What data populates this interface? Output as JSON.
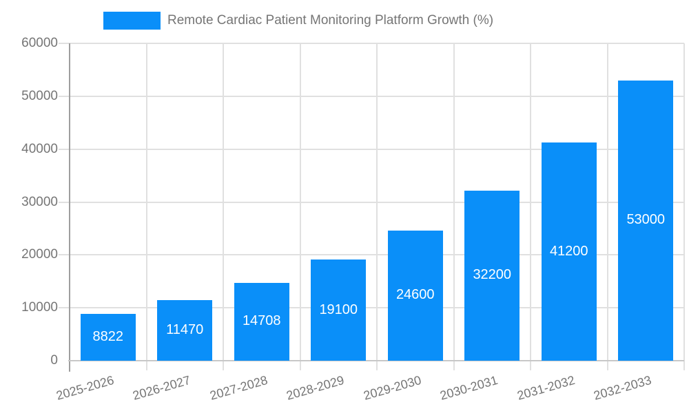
{
  "legend": {
    "label": "Remote Cardiac Patient Monitoring Platform Growth (%)"
  },
  "colors": {
    "bar": "#0a8ff9",
    "label_text": "#757575",
    "value_text": "#ffffff",
    "gridline": "#e0e0e0",
    "y_axis": "#9e9e9e",
    "x_axis": "#c7c7c7",
    "background": "#ffffff"
  },
  "chart_data": {
    "type": "bar",
    "title": "Remote Cardiac Patient Monitoring Platform Growth (%)",
    "categories": [
      "2025-2026",
      "2026-2027",
      "2027-2028",
      "2028-2029",
      "2029-2030",
      "2030-2031",
      "2031-2032",
      "2032-2033"
    ],
    "values": [
      8822,
      11470,
      14708,
      19100,
      24600,
      32200,
      41200,
      53000
    ],
    "value_labels": [
      "8822",
      "11470",
      "14708",
      "19100",
      "24600",
      "32200",
      "41200",
      "53000"
    ],
    "xlabel": "",
    "ylabel": "",
    "ylim": [
      0,
      60000
    ],
    "yticks": [
      0,
      10000,
      20000,
      30000,
      40000,
      50000,
      60000
    ],
    "ytick_labels": [
      "0",
      "10000",
      "20000",
      "30000",
      "40000",
      "50000",
      "60000"
    ],
    "grid": true,
    "legend_position": "top",
    "bar_label_position": "center-inside",
    "x_label_rotation_deg": -16
  }
}
